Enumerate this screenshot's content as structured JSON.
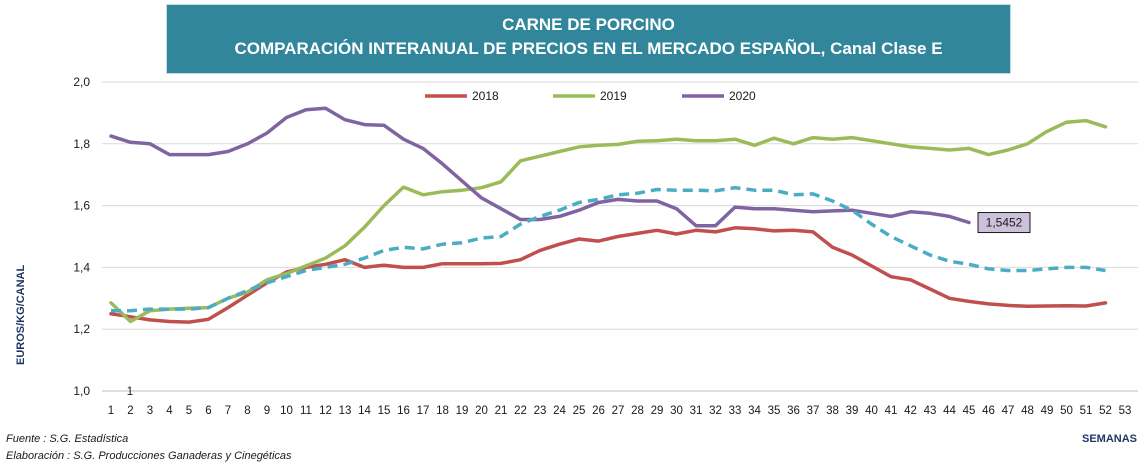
{
  "header": {
    "title_line1": "CARNE DE PORCINO",
    "title_line2": "COMPARACIÓN INTERANUAL DE PRECIOS EN EL MERCADO ESPAÑOL, Canal Clase E"
  },
  "footer": {
    "source": "Fuente :  S.G. Estadística",
    "elaboration": "Elaboración : S.G. Producciones Ganaderas y Cinegéticas"
  },
  "chart_data": {
    "type": "line",
    "title": "CARNE DE PORCINO — COMPARACIÓN INTERANUAL DE PRECIOS EN EL MERCADO ESPAÑOL, Canal Clase E",
    "xlabel": "SEMANAS",
    "ylabel": "EUROS/KG/CANAL",
    "ylim": [
      1.0,
      2.0
    ],
    "yticks": [
      "1,0",
      "1,2",
      "1,4",
      "1,6",
      "1,8",
      "2,0"
    ],
    "x_ticks": [
      1,
      2,
      3,
      4,
      5,
      6,
      7,
      8,
      9,
      10,
      11,
      12,
      13,
      14,
      15,
      16,
      17,
      18,
      19,
      20,
      21,
      22,
      23,
      24,
      25,
      26,
      27,
      28,
      29,
      30,
      31,
      32,
      33,
      34,
      35,
      36,
      37,
      38,
      39,
      40,
      41,
      42,
      43,
      44,
      45,
      46,
      47,
      48,
      49,
      50,
      51,
      52,
      53
    ],
    "legend_position": "top-center",
    "grid": "horizontal",
    "annotation": {
      "week": 45,
      "value": 1.5452,
      "label": "1,5452"
    },
    "extra_label": {
      "text": "1",
      "near_week": 2
    },
    "series": [
      {
        "name": "2018",
        "color": "#c0504d",
        "style": "solid",
        "values": [
          1.25,
          1.24,
          1.23,
          1.225,
          1.223,
          1.232,
          1.27,
          1.31,
          1.35,
          1.385,
          1.4,
          1.41,
          1.425,
          1.4,
          1.407,
          1.4,
          1.4,
          1.412,
          1.412,
          1.412,
          1.413,
          1.425,
          1.455,
          1.475,
          1.492,
          1.485,
          1.5,
          1.51,
          1.52,
          1.508,
          1.52,
          1.515,
          1.528,
          1.525,
          1.518,
          1.52,
          1.515,
          1.465,
          1.44,
          1.405,
          1.37,
          1.36,
          1.33,
          1.3,
          1.29,
          1.282,
          1.277,
          1.274,
          1.275,
          1.276,
          1.275,
          1.285
        ]
      },
      {
        "name": "2019",
        "color": "#9bbb59",
        "style": "solid",
        "values": [
          1.285,
          1.225,
          1.26,
          1.265,
          1.268,
          1.27,
          1.3,
          1.32,
          1.36,
          1.38,
          1.405,
          1.43,
          1.47,
          1.53,
          1.6,
          1.66,
          1.635,
          1.645,
          1.65,
          1.658,
          1.677,
          1.745,
          1.76,
          1.775,
          1.79,
          1.795,
          1.798,
          1.808,
          1.81,
          1.815,
          1.81,
          1.81,
          1.815,
          1.795,
          1.818,
          1.8,
          1.82,
          1.815,
          1.82,
          1.81,
          1.8,
          1.79,
          1.785,
          1.78,
          1.785,
          1.765,
          1.78,
          1.8,
          1.84,
          1.87,
          1.875,
          1.855
        ]
      },
      {
        "name": "2020",
        "color": "#8064a2",
        "style": "solid",
        "values": [
          1.825,
          1.805,
          1.8,
          1.765,
          1.765,
          1.765,
          1.775,
          1.8,
          1.835,
          1.885,
          1.91,
          1.915,
          1.878,
          1.862,
          1.86,
          1.815,
          1.785,
          1.735,
          1.68,
          1.625,
          1.59,
          1.555,
          1.555,
          1.565,
          1.585,
          1.61,
          1.62,
          1.615,
          1.615,
          1.59,
          1.535,
          1.535,
          1.595,
          1.59,
          1.59,
          1.585,
          1.58,
          1.583,
          1.585,
          1.575,
          1.565,
          1.58,
          1.575,
          1.565,
          1.5452
        ]
      },
      {
        "name": "",
        "color": "#4bacc6",
        "style": "dashed",
        "values": [
          1.26,
          1.26,
          1.265,
          1.265,
          1.265,
          1.27,
          1.3,
          1.325,
          1.35,
          1.37,
          1.39,
          1.4,
          1.41,
          1.43,
          1.455,
          1.465,
          1.46,
          1.475,
          1.48,
          1.495,
          1.5,
          1.54,
          1.565,
          1.585,
          1.61,
          1.62,
          1.635,
          1.64,
          1.652,
          1.65,
          1.65,
          1.648,
          1.658,
          1.65,
          1.65,
          1.635,
          1.638,
          1.615,
          1.585,
          1.54,
          1.5,
          1.47,
          1.44,
          1.42,
          1.41,
          1.395,
          1.39,
          1.39,
          1.395,
          1.4,
          1.4,
          1.39
        ]
      }
    ]
  }
}
